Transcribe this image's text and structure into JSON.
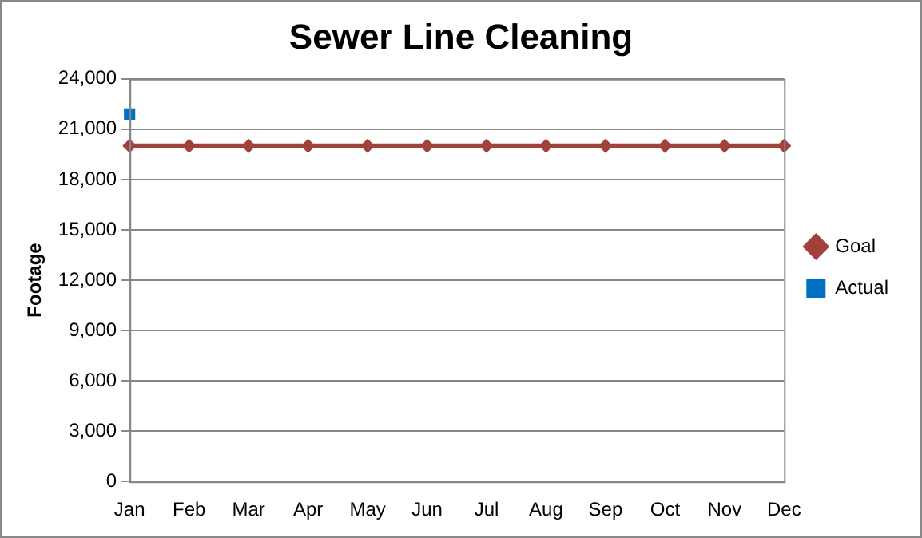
{
  "chart_data": {
    "type": "line",
    "title": "Sewer Line Cleaning",
    "ylabel": "Footage",
    "categories": [
      "Jan",
      "Feb",
      "Mar",
      "Apr",
      "May",
      "Jun",
      "Jul",
      "Aug",
      "Sep",
      "Oct",
      "Nov",
      "Dec"
    ],
    "series": [
      {
        "name": "Goal",
        "color": "#a0413c",
        "marker": "diamond",
        "values": [
          20000,
          20000,
          20000,
          20000,
          20000,
          20000,
          20000,
          20000,
          20000,
          20000,
          20000,
          20000
        ]
      },
      {
        "name": "Actual",
        "color": "#0070c0",
        "marker": "square",
        "values": [
          21900,
          null,
          null,
          null,
          null,
          null,
          null,
          null,
          null,
          null,
          null,
          null
        ]
      }
    ],
    "ylim": [
      0,
      24000
    ],
    "yticks": [
      0,
      {
        "value": 3000,
        "label": "3,000"
      },
      {
        "value": 6000,
        "label": "6,000"
      },
      {
        "value": 9000,
        "label": "9,000"
      },
      {
        "value": 12000,
        "label": "12,000"
      },
      {
        "value": 15000,
        "label": "15,000"
      },
      {
        "value": 18000,
        "label": "18,000"
      },
      {
        "value": 21000,
        "label": "21,000"
      },
      {
        "value": 24000,
        "label": "24,000"
      }
    ],
    "grid": "y",
    "legend": "right"
  }
}
